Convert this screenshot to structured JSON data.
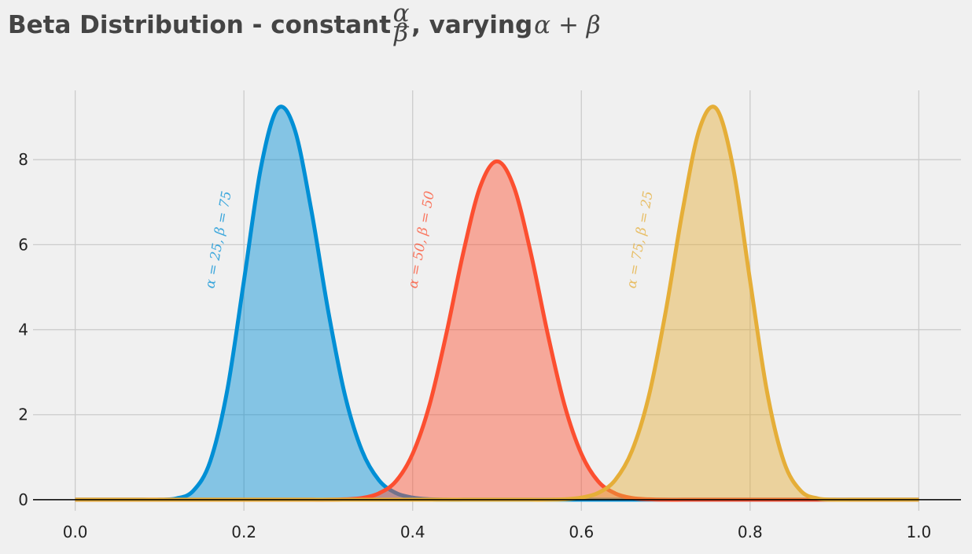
{
  "chart_data": {
    "type": "area",
    "title": {
      "text_before": "Beta Distribution - constant ",
      "fraction_numerator": "α",
      "fraction_denominator": "β",
      "text_after": ", varying ",
      "math_after": "α + β"
    },
    "x": [
      0,
      0.02,
      0.04,
      0.06,
      0.08,
      0.1,
      0.12,
      0.14,
      0.16,
      0.18,
      0.2,
      0.22,
      0.24,
      0.26,
      0.28,
      0.3,
      0.32,
      0.34,
      0.36,
      0.38,
      0.4,
      0.42,
      0.44,
      0.46,
      0.48,
      0.5,
      0.52,
      0.54,
      0.56,
      0.58,
      0.6,
      0.62,
      0.64,
      0.66,
      0.68,
      0.7,
      0.72,
      0.74,
      0.76,
      0.78,
      0.8,
      0.82,
      0.84,
      0.86,
      0.88,
      0.9,
      0.92,
      0.94,
      0.96,
      0.98,
      1
    ],
    "series": [
      {
        "name": "α = 25, β = 75",
        "color": "#008fd5",
        "values": [
          0,
          0,
          0,
          0,
          0,
          0,
          0.03,
          0.21,
          0.9,
          2.55,
          5.15,
          7.8,
          9.2,
          8.72,
          6.8,
          4.43,
          2.44,
          1.15,
          0.46,
          0.16,
          0.05,
          0.01,
          0,
          0,
          0,
          0,
          0,
          0,
          0,
          0,
          0,
          0,
          0,
          0,
          0,
          0,
          0,
          0,
          0,
          0,
          0,
          0,
          0,
          0,
          0,
          0,
          0,
          0,
          0,
          0,
          0
        ]
      },
      {
        "name": "α = 50, β = 50",
        "color": "#fc4f30",
        "values": [
          0,
          0,
          0,
          0,
          0,
          0,
          0,
          0,
          0,
          0,
          0,
          0,
          0,
          0,
          0,
          0,
          0.01,
          0.04,
          0.15,
          0.43,
          1.08,
          2.23,
          3.91,
          5.81,
          7.36,
          7.96,
          7.36,
          5.81,
          3.91,
          2.23,
          1.08,
          0.43,
          0.15,
          0.04,
          0.01,
          0,
          0,
          0,
          0,
          0,
          0,
          0,
          0,
          0,
          0,
          0,
          0,
          0,
          0,
          0,
          0
        ]
      },
      {
        "name": "α = 75, β = 25",
        "color": "#e5ae38",
        "values": [
          0,
          0,
          0,
          0,
          0,
          0,
          0,
          0,
          0,
          0,
          0,
          0,
          0,
          0,
          0,
          0,
          0,
          0,
          0,
          0,
          0,
          0,
          0,
          0,
          0,
          0,
          0,
          0,
          0,
          0.01,
          0.05,
          0.16,
          0.46,
          1.15,
          2.44,
          4.43,
          6.8,
          8.72,
          9.2,
          7.8,
          5.15,
          2.55,
          0.9,
          0.21,
          0.03,
          0,
          0,
          0,
          0,
          0,
          0
        ]
      }
    ],
    "xlim": [
      -0.05,
      1.05
    ],
    "ylim": [
      -0.26,
      9.63
    ],
    "xticks": [
      {
        "value": 0,
        "label": "0.0"
      },
      0.2,
      0.4,
      0.6,
      0.8,
      {
        "value": 1,
        "label": "1.0"
      }
    ],
    "yticks": [
      0,
      2,
      4,
      6,
      8
    ],
    "grid": true
  }
}
